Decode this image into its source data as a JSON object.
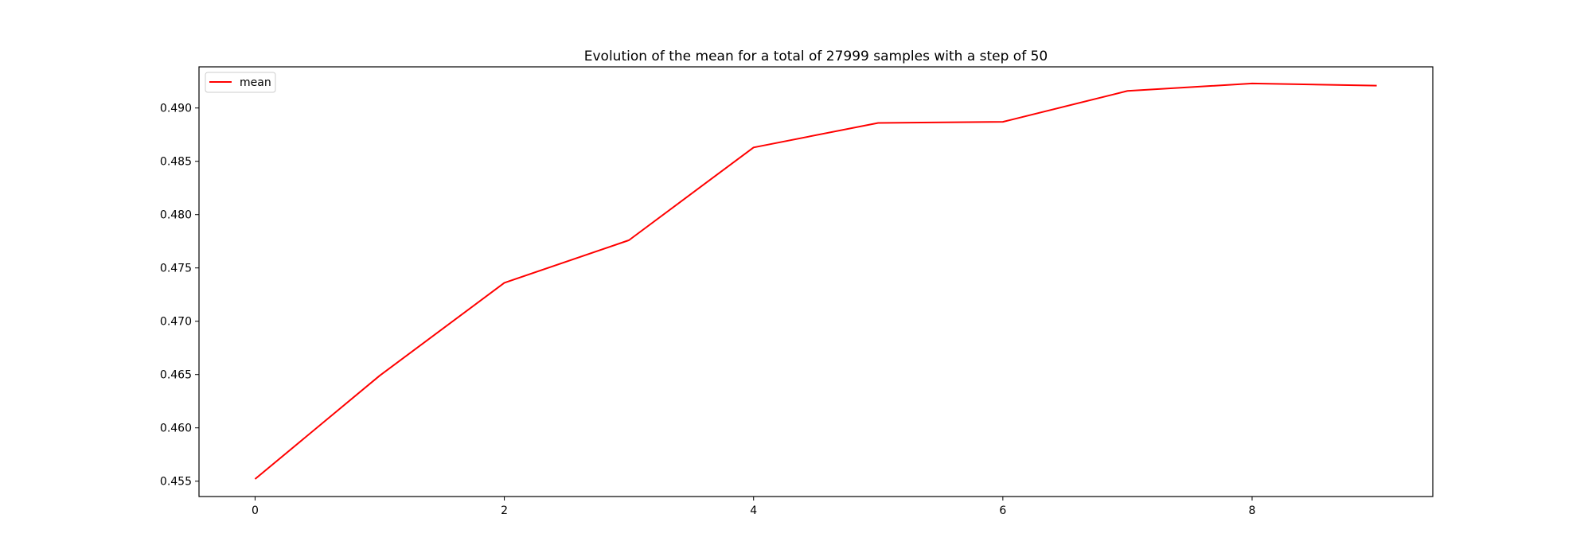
{
  "chart_data": {
    "type": "line",
    "title": "Evolution of the mean for a total of 27999 samples with a step of 50",
    "xlabel": "",
    "ylabel": "",
    "x": [
      0,
      1,
      2,
      3,
      4,
      5,
      6,
      7,
      8,
      9
    ],
    "series": [
      {
        "name": "mean",
        "color": "#ff0000",
        "values": [
          0.4552,
          0.4649,
          0.4736,
          0.4776,
          0.4863,
          0.4886,
          0.4887,
          0.4916,
          0.4923,
          0.4921
        ]
      }
    ],
    "xlim": [
      -0.45,
      9.45
    ],
    "ylim": [
      0.45356,
      0.49386
    ],
    "xticks": [
      0,
      2,
      4,
      6,
      8
    ],
    "xtick_labels": [
      "0",
      "2",
      "4",
      "6",
      "8"
    ],
    "yticks": [
      0.455,
      0.46,
      0.465,
      0.47,
      0.475,
      0.48,
      0.485,
      0.49
    ],
    "ytick_labels": [
      "0.455",
      "0.460",
      "0.465",
      "0.470",
      "0.475",
      "0.480",
      "0.485",
      "0.490"
    ],
    "grid": false,
    "legend": {
      "placement": "top-left",
      "entries": [
        "mean"
      ]
    }
  }
}
